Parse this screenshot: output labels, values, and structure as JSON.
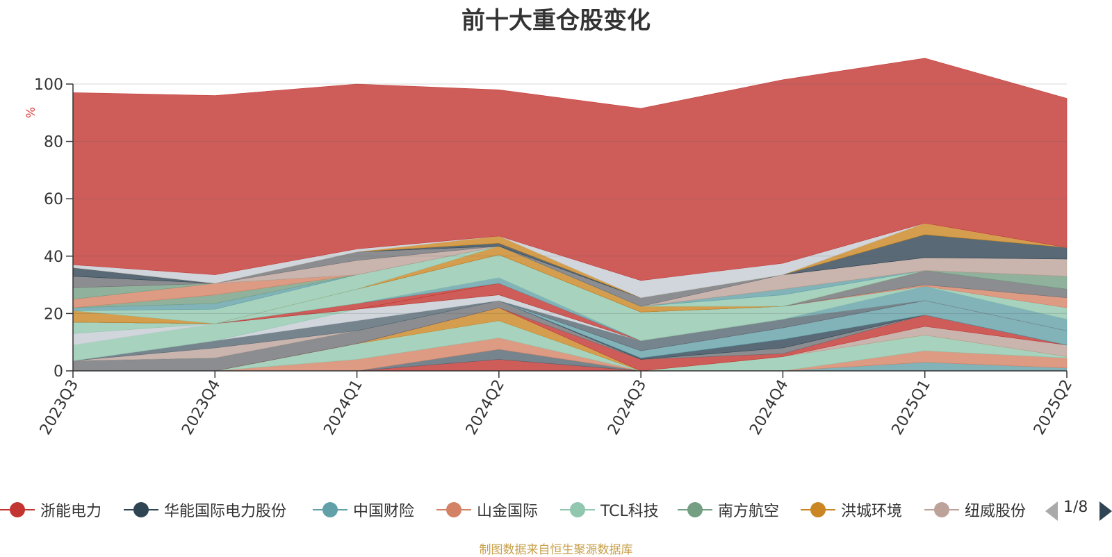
{
  "colors": {
    "浙能电力": "#c23531",
    "华能国际电力股份": "#2f4554",
    "中国财险": "#61a0a8",
    "山金国际": "#d48265",
    "TCL科技": "#91c7ae",
    "南方航空": "#749f83",
    "洪城环境": "#ca8622",
    "纽威股份": "#bda29a",
    "其他A": "#6e7074",
    "其他B": "#546570",
    "其他C": "#c4ccd3"
  },
  "chart_data": {
    "type": "area",
    "title": "前十大重仓股变化",
    "ylabel": "%",
    "ylim": [
      0,
      100
    ],
    "yticks": [
      0,
      20,
      40,
      60,
      80,
      100
    ],
    "grid": true,
    "legend_position": "bottom",
    "categories": [
      "2023Q3",
      "2023Q4",
      "2024Q1",
      "2024Q2",
      "2024Q3",
      "2024Q4",
      "2025Q1",
      "2025Q2"
    ],
    "series": [
      {
        "color": "#c23531",
        "values": [
          0,
          0,
          0,
          4,
          0,
          0,
          0,
          0
        ]
      },
      {
        "color": "#546570",
        "values": [
          0,
          0,
          0,
          3.5,
          0,
          0,
          0,
          0
        ]
      },
      {
        "color": "#61a0a8",
        "values": [
          0,
          0,
          0,
          0,
          0,
          0,
          3,
          1
        ]
      },
      {
        "color": "#d48265",
        "values": [
          0,
          0,
          4,
          4,
          0,
          0,
          4,
          3.5
        ]
      },
      {
        "color": "#91c7ae",
        "values": [
          0,
          0,
          5.5,
          6,
          0,
          5,
          5.5,
          0.5
        ]
      },
      {
        "color": "#ca8622",
        "values": [
          0,
          0,
          0,
          4.5,
          0,
          0,
          0,
          0
        ]
      },
      {
        "color": "#bda29a",
        "values": [
          0,
          0,
          0,
          0,
          0,
          0,
          3,
          4
        ]
      },
      {
        "color": "#c23531",
        "values": [
          0,
          0,
          0,
          0,
          4,
          1,
          4,
          0
        ]
      },
      {
        "color": "#6e7074",
        "values": [
          3.5,
          4.5,
          4.5,
          2.5,
          0,
          2,
          0,
          0
        ]
      },
      {
        "color": "#2f4554",
        "values": [
          0,
          0,
          0,
          0,
          0.5,
          3,
          0,
          0
        ]
      },
      {
        "color": "#61a0a8",
        "values": [
          0,
          0,
          0,
          0,
          2.5,
          4,
          5,
          5
        ]
      },
      {
        "color": "#bda29a",
        "values": [
          0,
          3.5,
          0,
          0,
          0,
          0,
          0,
          0
        ]
      },
      {
        "color": "#546570",
        "values": [
          0,
          2.5,
          3.5,
          0,
          3.5,
          3,
          0,
          0
        ]
      },
      {
        "color": "#c4ccd3",
        "values": [
          0,
          0,
          4,
          2,
          0,
          0,
          0,
          0
        ]
      },
      {
        "color": "#91c7ae",
        "values": [
          5.5,
          6,
          0,
          0,
          0,
          0,
          0,
          0
        ]
      },
      {
        "color": "#c4ccd3",
        "values": [
          4,
          0,
          0,
          0,
          0,
          0,
          0,
          0
        ]
      },
      {
        "color": "#91c7ae",
        "values": [
          4,
          0,
          0,
          0,
          0,
          0,
          0,
          0
        ]
      },
      {
        "color": "#c23531",
        "values": [
          0,
          0,
          0,
          4,
          0,
          0,
          0,
          0
        ]
      },
      {
        "color": "#c23531",
        "values": [
          0,
          0,
          2,
          0,
          0,
          0,
          0,
          0
        ]
      },
      {
        "color": "#61a0a8",
        "values": [
          0,
          0,
          0,
          2,
          0,
          0,
          5,
          4
        ]
      },
      {
        "color": "#91c7ae",
        "values": [
          0,
          0,
          5,
          8,
          10,
          4.5,
          0,
          4
        ]
      },
      {
        "color": "#d48265",
        "values": [
          0,
          0,
          0,
          0,
          0,
          0,
          0.5,
          3.5
        ]
      },
      {
        "color": "#6e7074",
        "values": [
          0,
          0,
          0,
          0,
          0,
          0,
          5,
          3
        ]
      },
      {
        "color": "#749f83",
        "values": [
          0,
          0,
          0,
          0,
          0,
          0,
          0,
          4.5
        ]
      },
      {
        "color": "#ca8622",
        "values": [
          4,
          0,
          0,
          3,
          2,
          0,
          0,
          0
        ]
      },
      {
        "color": "#91c7ae",
        "values": [
          0,
          5,
          5,
          0,
          0,
          4,
          0,
          0
        ]
      },
      {
        "color": "#61a0a8",
        "values": [
          1,
          2,
          0,
          0,
          0,
          2,
          0,
          0
        ]
      },
      {
        "color": "#749f83",
        "values": [
          0,
          3,
          0,
          0,
          0,
          0,
          0,
          0
        ]
      },
      {
        "color": "#d48265",
        "values": [
          3,
          4,
          0,
          0,
          0,
          0,
          0,
          0
        ]
      },
      {
        "color": "#749f83",
        "values": [
          4,
          0,
          0,
          0,
          0,
          0,
          0,
          0
        ]
      },
      {
        "color": "#bda29a",
        "values": [
          0,
          0,
          5,
          0,
          0,
          5,
          4.5,
          6
        ]
      },
      {
        "color": "#6e7074",
        "values": [
          4,
          0,
          3,
          0,
          3,
          0,
          0,
          0
        ]
      },
      {
        "color": "#2f4554",
        "values": [
          3,
          0,
          0,
          1,
          0,
          0,
          8,
          4
        ]
      },
      {
        "color": "#ca8622",
        "values": [
          0,
          0,
          0,
          2.5,
          0,
          0,
          4,
          0
        ]
      },
      {
        "color": "#c4ccd3",
        "values": [
          1,
          3,
          1,
          0,
          6,
          4,
          0,
          0
        ]
      },
      {
        "color": "#c23531",
        "values": [
          60,
          62.5,
          57.5,
          51,
          60,
          64,
          57.5,
          52
        ]
      }
    ]
  },
  "legend": {
    "items": [
      {
        "label": "浙能电力",
        "color": "#c23531"
      },
      {
        "label": "华能国际电力股份",
        "color": "#2f4554"
      },
      {
        "label": "中国财险",
        "color": "#61a0a8"
      },
      {
        "label": "山金国际",
        "color": "#d48265"
      },
      {
        "label": "TCL科技",
        "color": "#91c7ae"
      },
      {
        "label": "南方航空",
        "color": "#749f83"
      },
      {
        "label": "洪城环境",
        "color": "#ca8622"
      },
      {
        "label": "纽威股份",
        "color": "#bda29a"
      }
    ],
    "page": "1/8"
  },
  "footer": {
    "source": "制图数据来自恒生聚源数据库"
  }
}
